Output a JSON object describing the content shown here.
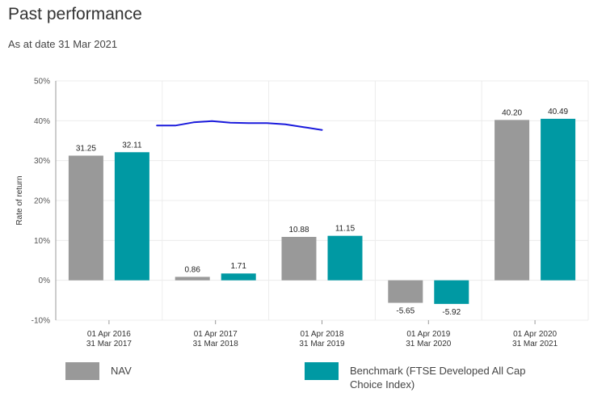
{
  "header": {
    "title": "Past performance",
    "as_at": "As at date 31 Mar 2021"
  },
  "colors": {
    "nav": "#999999",
    "benchmark": "#0099a3",
    "annotation": "#1a1adc",
    "grid": "#ececec",
    "axis": "#999999"
  },
  "legend": {
    "nav": "NAV",
    "benchmark_line1": "Benchmark (FTSE Developed All Cap",
    "benchmark_line2": "Choice Index)"
  },
  "chart_data": {
    "type": "bar",
    "title": "",
    "xlabel": "",
    "ylabel": "Rate of return",
    "ylim": [
      -10,
      50
    ],
    "yticks": [
      50,
      40,
      30,
      20,
      10,
      0,
      -10
    ],
    "ytick_labels": [
      "50%",
      "40%",
      "30%",
      "20%",
      "10%",
      "0%",
      "-10%"
    ],
    "categories": [
      [
        "01 Apr 2016",
        "31 Mar 2017"
      ],
      [
        "01 Apr 2017",
        "31 Mar 2018"
      ],
      [
        "01 Apr 2018",
        "31 Mar 2019"
      ],
      [
        "01 Apr 2019",
        "31 Mar 2020"
      ],
      [
        "01 Apr 2020",
        "31 Mar 2021"
      ]
    ],
    "series": [
      {
        "name": "NAV",
        "values": [
          31.25,
          0.86,
          10.88,
          -5.65,
          40.2
        ],
        "labels": [
          "31.25",
          "0.86",
          "10.88",
          "-5.65",
          "40.20"
        ]
      },
      {
        "name": "Benchmark (FTSE Developed All Cap Choice Index)",
        "values": [
          32.11,
          1.71,
          11.15,
          -5.92,
          40.49
        ],
        "labels": [
          "32.11",
          "1.71",
          "11.15",
          "-5.92",
          "40.49"
        ]
      }
    ],
    "annotation": {
      "kind": "hand-drawn line",
      "x_from": 0.45,
      "x_to": 2.0,
      "y_values": [
        38.8,
        38.8,
        39.6,
        39.9,
        39.5,
        39.4,
        39.4,
        39.1,
        38.4,
        37.7
      ]
    }
  }
}
